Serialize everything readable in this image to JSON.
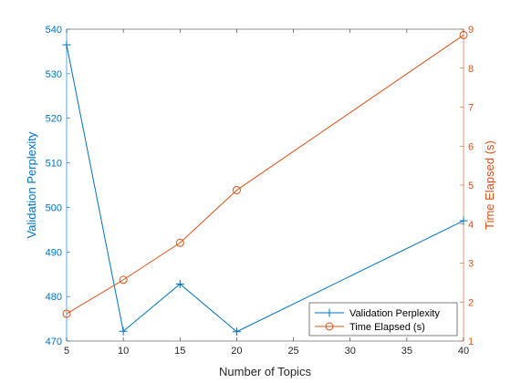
{
  "chart_data": {
    "type": "line",
    "xlabel": "Number of Topics",
    "x": [
      5,
      10,
      15,
      20,
      40
    ],
    "x_ticks": [
      "5",
      "10",
      "15",
      "20",
      "25",
      "30",
      "35",
      "40"
    ],
    "x_tick_values": [
      5,
      10,
      15,
      20,
      25,
      30,
      35,
      40
    ],
    "xlim": [
      5,
      40
    ],
    "left_axis": {
      "label": "Validation Perplexity",
      "ylim": [
        470,
        540
      ],
      "ticks": [
        "470",
        "480",
        "490",
        "500",
        "510",
        "520",
        "530",
        "540"
      ],
      "tick_values": [
        470,
        480,
        490,
        500,
        510,
        520,
        530,
        540
      ],
      "color": "#0072BD"
    },
    "right_axis": {
      "label": "Time Elapsed (s)",
      "ylim": [
        1,
        9
      ],
      "ticks": [
        "1",
        "2",
        "3",
        "4",
        "5",
        "6",
        "7",
        "8",
        "9"
      ],
      "tick_values": [
        1,
        2,
        3,
        4,
        5,
        6,
        7,
        8,
        9
      ],
      "color": "#D95319"
    },
    "series": [
      {
        "name": "Validation Perplexity",
        "axis": "left",
        "marker": "plus",
        "color": "#0072BD",
        "values": [
          536.5,
          472.2,
          482.8,
          472.1,
          497.0
        ]
      },
      {
        "name": "Time Elapsed (s)",
        "axis": "right",
        "marker": "circle",
        "color": "#D95319",
        "values": [
          1.7,
          2.57,
          3.52,
          4.87,
          8.85
        ]
      }
    ],
    "legend": {
      "position": "bottom-right"
    },
    "grid": false
  }
}
